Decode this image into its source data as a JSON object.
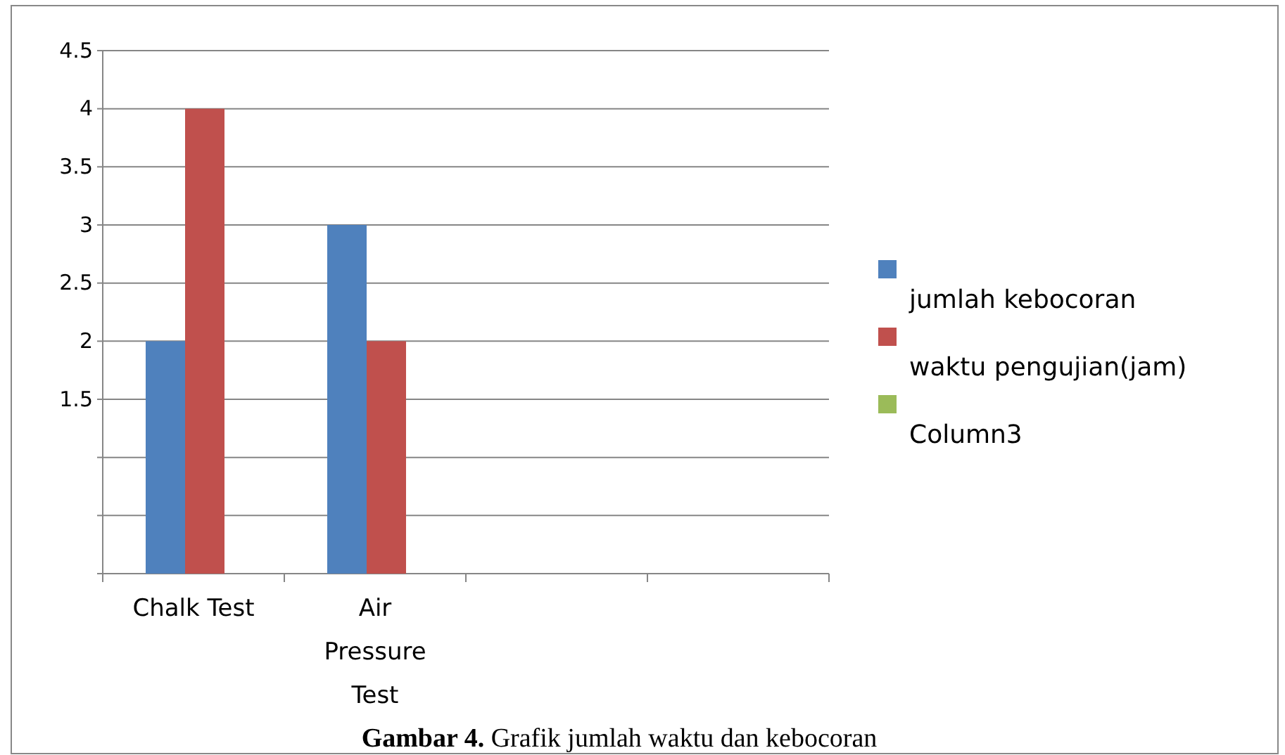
{
  "chart_data": {
    "type": "bar",
    "title": "Gambar 4. Grafik jumlah waktu dan kebocoran",
    "categories": [
      "Chalk Test",
      "Air Pressure Test",
      null,
      null
    ],
    "series": [
      {
        "name": "jumlah kebocoran",
        "color": "#4f81bd",
        "values": [
          2,
          3,
          null,
          null
        ]
      },
      {
        "name": "waktu pengujian(jam)",
        "color": "#c0504d",
        "values": [
          4,
          2,
          null,
          null
        ]
      },
      {
        "name": "Column3",
        "color": "#9bbb59",
        "values": [
          null,
          null,
          null,
          null
        ]
      }
    ],
    "ylim": [
      0,
      4.5
    ],
    "yticks": [
      {
        "value": 0,
        "label": null
      },
      {
        "value": 0.5,
        "label": null
      },
      {
        "value": 1,
        "label": null
      },
      1.5,
      2,
      2.5,
      3,
      3.5,
      4,
      4.5
    ],
    "grid": "y",
    "legend": "right"
  }
}
